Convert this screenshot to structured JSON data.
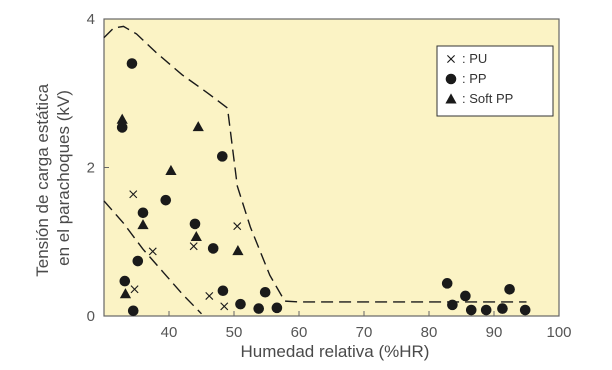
{
  "chart_data": {
    "type": "scatter",
    "xlabel": "Humedad relativa (%HR)",
    "ylabel": [
      "Tensión de carga estática",
      "en el parachoques (kV)"
    ],
    "xlim": [
      30,
      100
    ],
    "ylim": [
      0,
      4
    ],
    "x_ticks": [
      "40",
      "50",
      "60",
      "70",
      "80",
      "90",
      "100"
    ],
    "y_ticks": [
      "0",
      "2",
      "4"
    ],
    "plot_background": "#fbf3c5",
    "legend_position": "top-right",
    "series": [
      {
        "name": ": PU",
        "marker": "x",
        "points": [
          {
            "x": 34.5,
            "y": 1.64
          },
          {
            "x": 34.7,
            "y": 0.36
          },
          {
            "x": 37.5,
            "y": 0.87
          },
          {
            "x": 43.8,
            "y": 0.94
          },
          {
            "x": 46.2,
            "y": 0.27
          },
          {
            "x": 48.5,
            "y": 0.13
          },
          {
            "x": 50.5,
            "y": 1.21
          }
        ]
      },
      {
        "name": ": PP",
        "marker": "circle",
        "points": [
          {
            "x": 32.8,
            "y": 2.54
          },
          {
            "x": 33.2,
            "y": 0.47
          },
          {
            "x": 34.3,
            "y": 3.4
          },
          {
            "x": 34.5,
            "y": 0.07
          },
          {
            "x": 35.2,
            "y": 0.74
          },
          {
            "x": 36.0,
            "y": 1.39
          },
          {
            "x": 39.5,
            "y": 1.56
          },
          {
            "x": 44.0,
            "y": 1.24
          },
          {
            "x": 46.8,
            "y": 0.91
          },
          {
            "x": 48.2,
            "y": 2.15
          },
          {
            "x": 48.3,
            "y": 0.34
          },
          {
            "x": 51.0,
            "y": 0.16
          },
          {
            "x": 53.8,
            "y": 0.1
          },
          {
            "x": 54.8,
            "y": 0.32
          },
          {
            "x": 56.6,
            "y": 0.11
          },
          {
            "x": 82.8,
            "y": 0.44
          },
          {
            "x": 83.6,
            "y": 0.15
          },
          {
            "x": 85.6,
            "y": 0.27
          },
          {
            "x": 86.5,
            "y": 0.08
          },
          {
            "x": 88.8,
            "y": 0.08
          },
          {
            "x": 91.3,
            "y": 0.1
          },
          {
            "x": 92.4,
            "y": 0.36
          },
          {
            "x": 94.8,
            "y": 0.08
          }
        ]
      },
      {
        "name": ": Soft PP",
        "marker": "triangle",
        "points": [
          {
            "x": 32.8,
            "y": 2.65
          },
          {
            "x": 33.3,
            "y": 0.3
          },
          {
            "x": 36.0,
            "y": 1.23
          },
          {
            "x": 40.3,
            "y": 1.96
          },
          {
            "x": 44.2,
            "y": 1.07
          },
          {
            "x": 44.5,
            "y": 2.55
          },
          {
            "x": 50.6,
            "y": 0.88
          }
        ]
      }
    ],
    "envelopes": [
      {
        "name": "upper envelope (dashed)",
        "points": [
          [
            30,
            3.75
          ],
          [
            31.5,
            3.88
          ],
          [
            33,
            3.9
          ],
          [
            35,
            3.8
          ],
          [
            38,
            3.55
          ],
          [
            42,
            3.25
          ],
          [
            46,
            3.0
          ],
          [
            49,
            2.8
          ],
          [
            50.5,
            1.75
          ],
          [
            52.5,
            1.2
          ],
          [
            55.5,
            0.55
          ],
          [
            57.8,
            0.2
          ],
          [
            60,
            0.19
          ],
          [
            70,
            0.19
          ],
          [
            80,
            0.19
          ],
          [
            95,
            0.19
          ]
        ]
      },
      {
        "name": "lower envelope (dashed)",
        "points": [
          [
            30,
            1.55
          ],
          [
            33,
            1.25
          ],
          [
            36,
            0.9
          ],
          [
            39,
            0.6
          ],
          [
            42,
            0.3
          ],
          [
            45,
            0.03
          ]
        ]
      }
    ]
  }
}
